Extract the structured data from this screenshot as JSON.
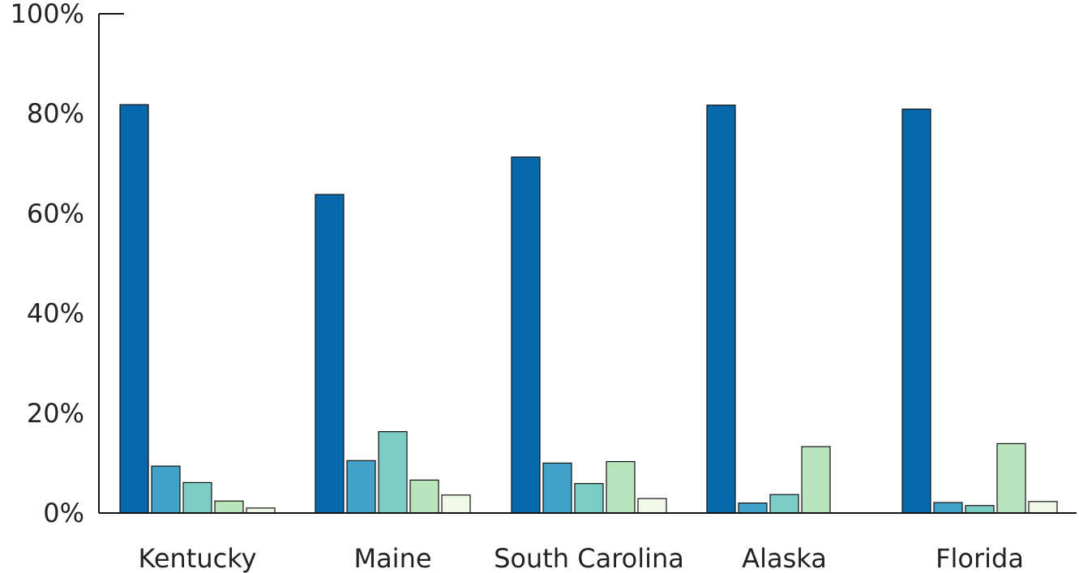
{
  "chart_data": {
    "type": "bar",
    "categories": [
      "Kentucky",
      "Maine",
      "South Carolina",
      "Alaska",
      "Florida"
    ],
    "series": [
      {
        "color": "#0868ac",
        "values": [
          81.8,
          63.8,
          71.3,
          81.7,
          80.9
        ]
      },
      {
        "color": "#43a2ca",
        "values": [
          9.4,
          10.5,
          10.0,
          2.0,
          2.1
        ]
      },
      {
        "color": "#7bccc4",
        "values": [
          6.1,
          16.3,
          5.9,
          3.7,
          1.5
        ]
      },
      {
        "color": "#bae4bc",
        "values": [
          2.4,
          6.6,
          10.3,
          13.3,
          13.9
        ]
      },
      {
        "color": "#f0f9e8",
        "values": [
          1.0,
          3.6,
          2.9,
          0,
          2.3
        ]
      }
    ],
    "ylim": [
      0,
      100
    ],
    "yticks": [
      0,
      20,
      40,
      60,
      80,
      100
    ],
    "ytick_labels": [
      "0%",
      "20%",
      "40%",
      "60%",
      "80%",
      "100%"
    ],
    "grid": false
  }
}
